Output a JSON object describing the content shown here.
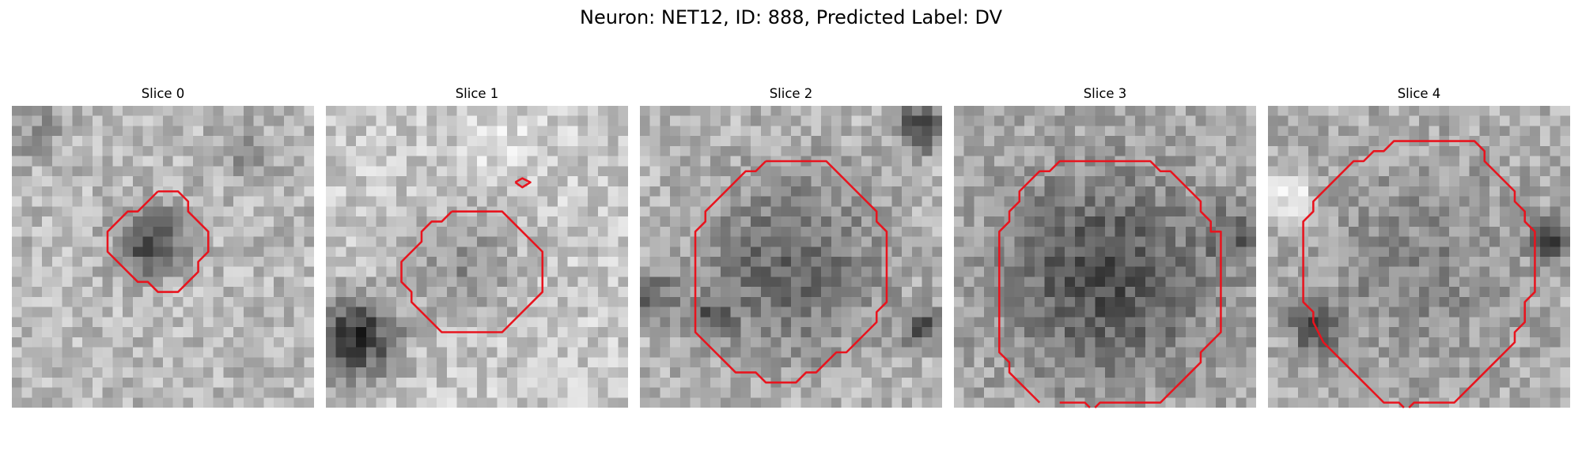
{
  "figure": {
    "title": "Neuron: NET12, ID: 888, Predicted Label: DV"
  },
  "colors": {
    "contour": "#e8141e",
    "background": "#ffffff"
  },
  "slices": [
    {
      "title": "Slice 0",
      "contours": [
        [
          [
            14.5,
            8.5
          ],
          [
            16.5,
            8.5
          ],
          [
            17.5,
            9.5
          ],
          [
            17.5,
            10.5
          ],
          [
            18.5,
            11.5
          ],
          [
            19.5,
            12.5
          ],
          [
            19.5,
            14.5
          ],
          [
            18.5,
            15.5
          ],
          [
            18.5,
            16.5
          ],
          [
            17.5,
            17.5
          ],
          [
            16.5,
            18.5
          ],
          [
            14.5,
            18.5
          ],
          [
            13.5,
            17.5
          ],
          [
            12.5,
            17.5
          ],
          [
            11.5,
            16.5
          ],
          [
            10.5,
            15.5
          ],
          [
            9.5,
            14.5
          ],
          [
            9.5,
            12.5
          ],
          [
            10.5,
            11.5
          ],
          [
            11.5,
            10.5
          ],
          [
            12.5,
            10.5
          ],
          [
            13.5,
            9.5
          ],
          [
            14.5,
            8.5
          ]
        ]
      ]
    },
    {
      "title": "Slice 1",
      "contours": [
        [
          [
            12.5,
            10.5
          ],
          [
            17.5,
            10.5
          ],
          [
            18.5,
            11.5
          ],
          [
            19.5,
            12.5
          ],
          [
            20.5,
            13.5
          ],
          [
            21.5,
            14.5
          ],
          [
            21.5,
            18.5
          ],
          [
            20.5,
            19.5
          ],
          [
            19.5,
            20.5
          ],
          [
            18.5,
            21.5
          ],
          [
            17.5,
            22.5
          ],
          [
            11.5,
            22.5
          ],
          [
            10.5,
            21.5
          ],
          [
            9.5,
            20.5
          ],
          [
            8.5,
            19.5
          ],
          [
            8.5,
            18.5
          ],
          [
            7.5,
            17.5
          ],
          [
            7.5,
            15.5
          ],
          [
            8.5,
            14.5
          ],
          [
            9.5,
            13.5
          ],
          [
            9.5,
            12.5
          ],
          [
            10.5,
            11.5
          ],
          [
            11.5,
            11.5
          ],
          [
            12.5,
            10.5
          ]
        ],
        [
          [
            18.8,
            7.6
          ],
          [
            19.5,
            7.2
          ],
          [
            20.3,
            7.6
          ],
          [
            19.5,
            8.1
          ],
          [
            18.8,
            7.6
          ]
        ]
      ]
    },
    {
      "title": "Slice 2",
      "contours": [
        [
          [
            12.5,
            5.5
          ],
          [
            18.5,
            5.5
          ],
          [
            19.5,
            6.5
          ],
          [
            20.5,
            7.5
          ],
          [
            21.5,
            8.5
          ],
          [
            22.5,
            9.5
          ],
          [
            23.5,
            10.5
          ],
          [
            23.5,
            11.5
          ],
          [
            24.5,
            12.5
          ],
          [
            24.5,
            19.5
          ],
          [
            23.5,
            20.5
          ],
          [
            23.5,
            21.5
          ],
          [
            22.5,
            22.5
          ],
          [
            21.5,
            23.5
          ],
          [
            20.5,
            24.5
          ],
          [
            19.5,
            24.5
          ],
          [
            18.5,
            25.5
          ],
          [
            17.5,
            26.5
          ],
          [
            16.5,
            26.5
          ],
          [
            15.5,
            27.5
          ],
          [
            12.5,
            27.5
          ],
          [
            11.5,
            26.5
          ],
          [
            9.5,
            26.5
          ],
          [
            8.5,
            25.5
          ],
          [
            7.5,
            24.5
          ],
          [
            6.5,
            23.5
          ],
          [
            5.5,
            22.5
          ],
          [
            5.5,
            21.5
          ],
          [
            5.5,
            20.5
          ],
          [
            5.5,
            12.5
          ],
          [
            6.5,
            11.5
          ],
          [
            6.5,
            10.5
          ],
          [
            7.5,
            9.5
          ],
          [
            8.5,
            8.5
          ],
          [
            9.5,
            7.5
          ],
          [
            10.5,
            6.5
          ],
          [
            11.5,
            6.5
          ],
          [
            12.5,
            5.5
          ]
        ]
      ]
    },
    {
      "title": "Slice 3",
      "contours": [
        [
          [
            8.5,
            29.5
          ],
          [
            7.5,
            28.5
          ],
          [
            6.5,
            27.5
          ],
          [
            5.5,
            26.5
          ],
          [
            5.5,
            25.5
          ],
          [
            4.5,
            24.5
          ],
          [
            4.5,
            23.5
          ],
          [
            4.5,
            12.5
          ],
          [
            5.5,
            11.5
          ],
          [
            5.5,
            10.5
          ],
          [
            6.5,
            9.5
          ],
          [
            6.5,
            8.5
          ],
          [
            7.5,
            7.5
          ],
          [
            8.5,
            6.5
          ],
          [
            9.5,
            6.5
          ],
          [
            10.5,
            5.5
          ],
          [
            19.5,
            5.5
          ],
          [
            20.5,
            6.5
          ],
          [
            21.5,
            6.5
          ],
          [
            22.5,
            7.5
          ],
          [
            23.5,
            8.5
          ],
          [
            24.5,
            9.5
          ],
          [
            24.5,
            10.5
          ],
          [
            25.5,
            11.5
          ],
          [
            25.5,
            12.5
          ],
          [
            26.5,
            12.5
          ],
          [
            26.5,
            22.5
          ],
          [
            25.5,
            23.5
          ],
          [
            24.5,
            24.5
          ],
          [
            24.5,
            25.5
          ],
          [
            23.5,
            26.5
          ],
          [
            22.5,
            27.5
          ],
          [
            21.5,
            28.5
          ],
          [
            20.5,
            29.5
          ],
          [
            14.5,
            29.5
          ],
          [
            14.0,
            30.0
          ]
        ],
        [
          [
            13.5,
            30.0
          ],
          [
            13.0,
            29.5
          ],
          [
            10.5,
            29.5
          ]
        ]
      ]
    },
    {
      "title": "Slice 4",
      "contours": [
        [
          [
            15.5,
            29.5
          ],
          [
            18.5,
            29.5
          ],
          [
            19.5,
            28.5
          ],
          [
            20.5,
            27.5
          ],
          [
            21.5,
            26.5
          ],
          [
            22.5,
            25.5
          ],
          [
            23.5,
            24.5
          ],
          [
            24.5,
            23.5
          ],
          [
            24.5,
            22.5
          ],
          [
            25.5,
            21.5
          ],
          [
            25.5,
            19.5
          ],
          [
            26.5,
            18.5
          ],
          [
            26.5,
            12.5
          ],
          [
            25.5,
            11.5
          ],
          [
            25.5,
            10.5
          ],
          [
            24.5,
            9.5
          ],
          [
            24.5,
            8.5
          ],
          [
            23.5,
            7.5
          ],
          [
            22.5,
            6.5
          ],
          [
            21.5,
            5.5
          ],
          [
            21.5,
            4.5
          ],
          [
            20.5,
            3.5
          ],
          [
            19.5,
            3.5
          ],
          [
            18.5,
            3.5
          ],
          [
            12.5,
            3.5
          ],
          [
            11.5,
            4.5
          ],
          [
            10.5,
            4.5
          ],
          [
            9.5,
            5.5
          ],
          [
            8.5,
            5.5
          ],
          [
            7.5,
            6.5
          ],
          [
            6.5,
            7.5
          ],
          [
            5.5,
            8.5
          ],
          [
            4.5,
            9.5
          ],
          [
            4.5,
            10.5
          ],
          [
            3.5,
            11.5
          ],
          [
            3.5,
            19.5
          ],
          [
            4.5,
            20.5
          ],
          [
            4.5,
            21.5
          ],
          [
            5.5,
            23.5
          ],
          [
            6.5,
            24.5
          ],
          [
            7.5,
            25.5
          ],
          [
            8.5,
            26.5
          ],
          [
            9.5,
            27.5
          ],
          [
            10.5,
            28.5
          ],
          [
            11.5,
            29.5
          ],
          [
            13.0,
            29.5
          ],
          [
            13.5,
            30.0
          ]
        ],
        [
          [
            14.0,
            30.0
          ],
          [
            14.5,
            29.5
          ],
          [
            15.5,
            29.5
          ]
        ]
      ]
    }
  ]
}
